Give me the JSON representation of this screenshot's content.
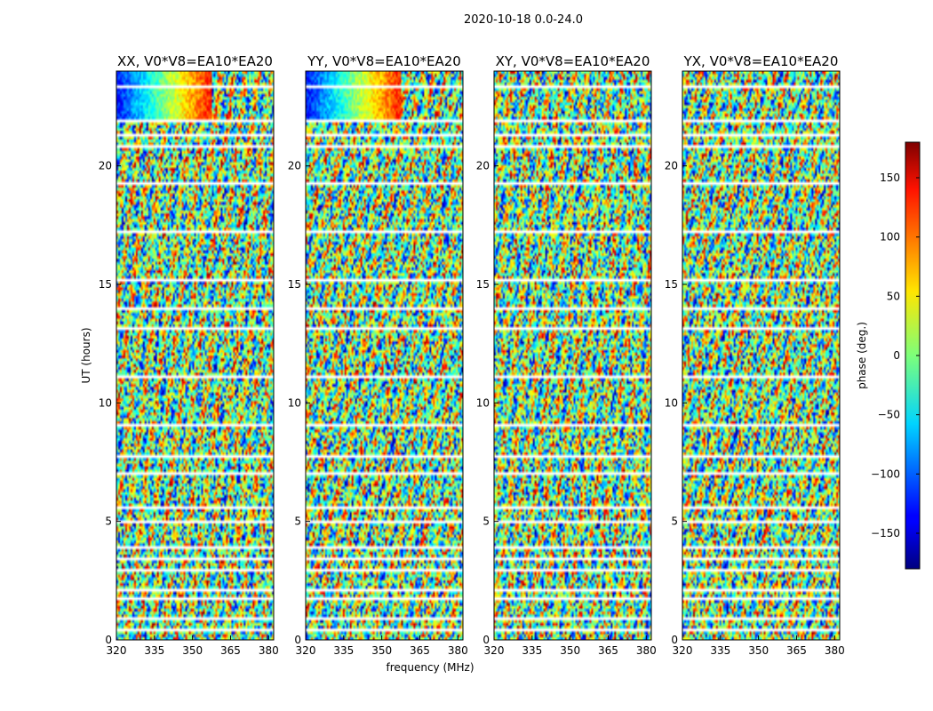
{
  "suptitle": "2020-10-18 0.0-24.0",
  "xlabel": "frequency (MHz)",
  "ylabel": "UT (hours)",
  "colorbar": {
    "label": "phase (deg.)",
    "ticks": [
      "150",
      "100",
      "50",
      "0",
      "−50",
      "−100",
      "−150"
    ]
  },
  "colors": {
    "background": "#ffffff",
    "colormap": "jet"
  },
  "chart_data": [
    {
      "type": "heatmap",
      "title": "XX, V0*V8=EA10*EA20",
      "xlim": [
        320,
        382
      ],
      "ylim": [
        0,
        24
      ],
      "xticks": [
        320,
        335,
        350,
        365,
        380
      ],
      "yticks": [
        0,
        5,
        10,
        15,
        20
      ],
      "value_range": [
        -180,
        180
      ],
      "value_unit": "phase (deg.)",
      "description_flagged_rows_hours": [
        0.5,
        1.8,
        2.2,
        3.5,
        4.0,
        5.6,
        7.8,
        14.0,
        20.9,
        22.0
      ]
    },
    {
      "type": "heatmap",
      "title": "YY, V0*V8=EA10*EA20",
      "xlim": [
        320,
        382
      ],
      "ylim": [
        0,
        24
      ],
      "xticks": [
        320,
        335,
        350,
        365,
        380
      ],
      "yticks": [
        0,
        5,
        10,
        15,
        20
      ],
      "value_range": [
        -180,
        180
      ],
      "value_unit": "phase (deg.)",
      "description_flagged_rows_hours": [
        0.5,
        1.8,
        2.2,
        3.5,
        4.0,
        5.6,
        7.8,
        14.0,
        20.9,
        22.0
      ]
    },
    {
      "type": "heatmap",
      "title": "XY, V0*V8=EA10*EA20",
      "xlim": [
        320,
        382
      ],
      "ylim": [
        0,
        24
      ],
      "xticks": [
        320,
        335,
        350,
        365,
        380
      ],
      "yticks": [
        0,
        5,
        10,
        15,
        20
      ],
      "value_range": [
        -180,
        180
      ],
      "value_unit": "phase (deg.)",
      "description_flagged_rows_hours": [
        0.5,
        1.8,
        2.2,
        3.5,
        4.0,
        5.6,
        7.8,
        14.0,
        20.9,
        22.0
      ]
    },
    {
      "type": "heatmap",
      "title": "YX, V0*V8=EA10*EA20",
      "xlim": [
        320,
        382
      ],
      "ylim": [
        0,
        24
      ],
      "xticks": [
        320,
        335,
        350,
        365,
        380
      ],
      "yticks": [
        0,
        5,
        10,
        15,
        20
      ],
      "value_range": [
        -180,
        180
      ],
      "value_unit": "phase (deg.)",
      "description_flagged_rows_hours": [
        0.5,
        1.8,
        2.2,
        3.5,
        4.0,
        5.6,
        7.8,
        14.0,
        20.9,
        22.0
      ]
    }
  ]
}
